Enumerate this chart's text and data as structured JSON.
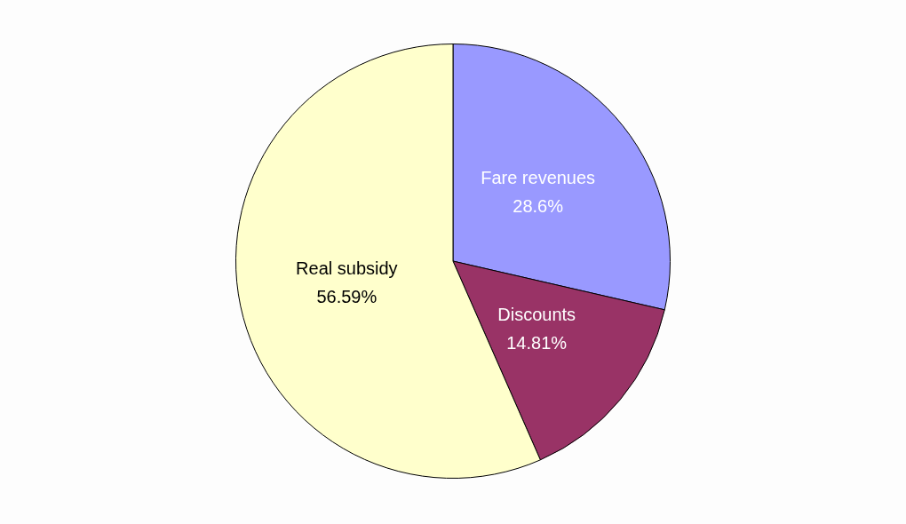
{
  "chart_data": {
    "type": "pie",
    "categories": [
      "Fare revenues",
      "Discounts",
      "Real subsidy"
    ],
    "values": [
      28.6,
      14.81,
      56.59
    ],
    "colors": [
      "#9999ff",
      "#993366",
      "#ffffcc"
    ],
    "value_labels": [
      "28.6%",
      "14.81%",
      "56.59%"
    ],
    "legend": false
  }
}
